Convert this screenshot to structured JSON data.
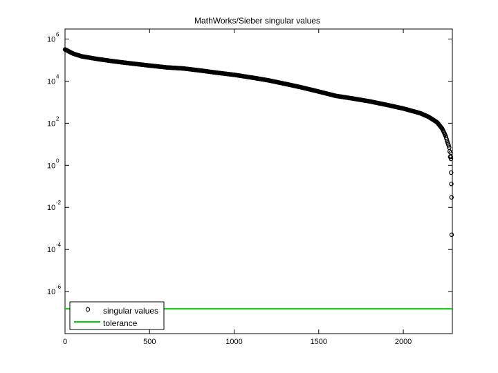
{
  "chart_data": {
    "type": "scatter",
    "title": "MathWorks/Sieber singular values",
    "xlabel": "",
    "ylabel": "",
    "xlim": [
      0,
      2290
    ],
    "ylim": [
      1e-08,
      3000000.0
    ],
    "yscale": "log",
    "grid": false,
    "legend_position": "bottom-left",
    "x_ticks": [
      0,
      500,
      1000,
      1500,
      2000
    ],
    "x_tick_labels": [
      "0",
      "500",
      "1000",
      "1500",
      "2000"
    ],
    "y_ticks": [
      1e-06,
      0.0001,
      0.01,
      1.0,
      100.0,
      10000.0,
      1000000.0
    ],
    "y_tick_labels": [
      {
        "base": "10",
        "exp": "-6"
      },
      {
        "base": "10",
        "exp": "-4"
      },
      {
        "base": "10",
        "exp": "-2"
      },
      {
        "base": "10",
        "exp": "0"
      },
      {
        "base": "10",
        "exp": "2"
      },
      {
        "base": "10",
        "exp": "4"
      },
      {
        "base": "10",
        "exp": "6"
      }
    ],
    "series": [
      {
        "name": "singular values",
        "marker": "circle-open",
        "color": "#000000",
        "curve": [
          [
            0,
            320000
          ],
          [
            50,
            200000
          ],
          [
            100,
            150000
          ],
          [
            200,
            110000
          ],
          [
            300,
            85000
          ],
          [
            400,
            68000
          ],
          [
            500,
            55000
          ],
          [
            600,
            45000
          ],
          [
            700,
            40000
          ],
          [
            800,
            32000
          ],
          [
            900,
            25000
          ],
          [
            1000,
            20000
          ],
          [
            1100,
            15000
          ],
          [
            1200,
            11000
          ],
          [
            1300,
            7500
          ],
          [
            1400,
            5000
          ],
          [
            1500,
            3200
          ],
          [
            1600,
            2000
          ],
          [
            1700,
            1500
          ],
          [
            1800,
            1100
          ],
          [
            1900,
            750
          ],
          [
            2000,
            500
          ],
          [
            2100,
            300
          ],
          [
            2150,
            200
          ],
          [
            2200,
            110
          ],
          [
            2230,
            55
          ],
          [
            2250,
            25
          ],
          [
            2262,
            12
          ],
          [
            2270,
            8
          ],
          [
            2275,
            4
          ],
          [
            2278,
            2
          ]
        ],
        "tail_points": [
          [
            2280,
            4
          ],
          [
            2281,
            2.5
          ],
          [
            2282,
            2
          ],
          [
            2283,
            0.45
          ],
          [
            2284,
            0.13
          ],
          [
            2285,
            0.03
          ],
          [
            2286,
            0.0005
          ]
        ]
      },
      {
        "name": "tolerance",
        "marker": "line",
        "color": "#00cc00",
        "x": [
          0,
          2290
        ],
        "y": [
          1.5e-07,
          1.5e-07
        ]
      }
    ]
  }
}
